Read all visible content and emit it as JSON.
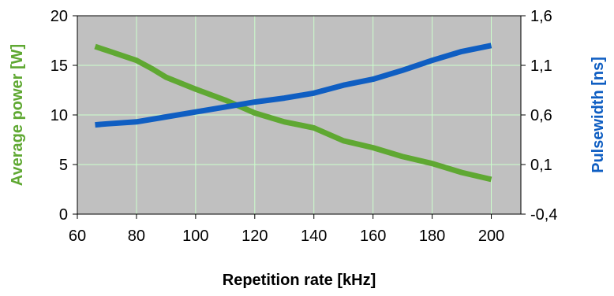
{
  "chart_data": {
    "type": "line",
    "title": "",
    "xlabel": "Repetition rate [kHz]",
    "ylabel_left": "Average power [W]",
    "ylabel_right": "Pulsewidth [ns]",
    "xlim": [
      60,
      210
    ],
    "ylim_left": [
      0,
      20
    ],
    "ylim_right": [
      -0.4,
      1.6
    ],
    "x_ticks": [
      60,
      80,
      100,
      120,
      140,
      160,
      180,
      200
    ],
    "y_left_ticks": [
      0,
      5,
      10,
      15,
      20
    ],
    "y_right_ticks": [
      "-0,4",
      "0,1",
      "0,6",
      "1,1",
      "1,6"
    ],
    "y_right_tick_values": [
      -0.4,
      0.1,
      0.6,
      1.1,
      1.6
    ],
    "grid": true,
    "plot_background": "#c0c0c0",
    "grid_color": "#ccffcc",
    "series": [
      {
        "axis": "left",
        "color": "#5fa832",
        "x": [
          66,
          70,
          80,
          85,
          90,
          100,
          110,
          120,
          130,
          140,
          150,
          160,
          170,
          180,
          190,
          200
        ],
        "values": [
          16.9,
          16.5,
          15.5,
          14.7,
          13.8,
          12.6,
          11.5,
          10.2,
          9.3,
          8.7,
          7.4,
          6.7,
          5.8,
          5.1,
          4.2,
          3.5
        ]
      },
      {
        "axis": "right",
        "color": "#0f5ec2",
        "x": [
          66,
          70,
          80,
          90,
          100,
          110,
          120,
          130,
          140,
          150,
          160,
          170,
          180,
          190,
          200
        ],
        "values": [
          0.5,
          0.51,
          0.53,
          0.58,
          0.63,
          0.68,
          0.73,
          0.77,
          0.82,
          0.9,
          0.96,
          1.05,
          1.15,
          1.24,
          1.3
        ]
      }
    ]
  }
}
